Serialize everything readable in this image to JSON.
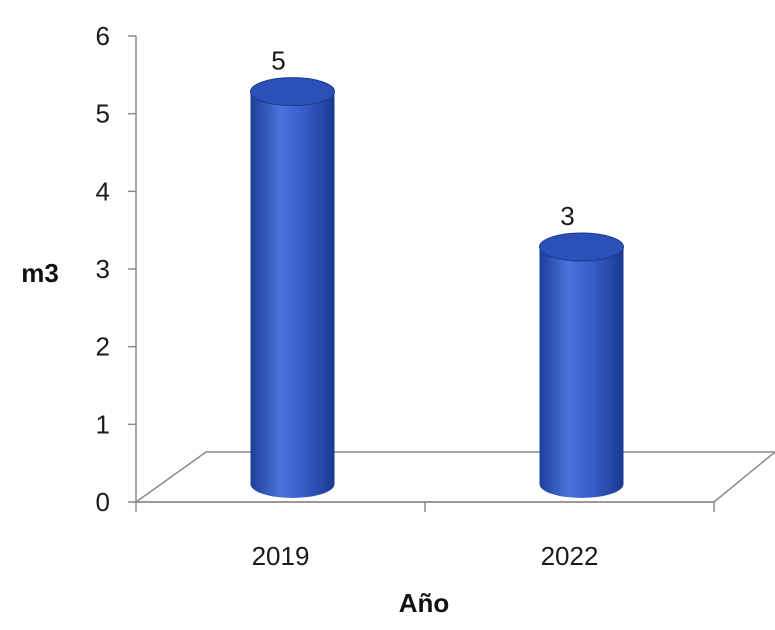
{
  "chart_data": {
    "type": "bar",
    "categories": [
      "2019",
      "2022"
    ],
    "values": [
      5,
      3
    ],
    "data_labels": [
      "5",
      "3"
    ],
    "title": "",
    "xlabel": "Año",
    "ylabel": "m3",
    "ylim": [
      0,
      6
    ],
    "yticks": [
      "0",
      "1",
      "2",
      "3",
      "4",
      "5",
      "6"
    ],
    "grid": false,
    "legend": "none",
    "style": "3d-cylinder",
    "bar_color": "#3a5fcd",
    "bar_color_dark": "#1a3a8f",
    "bar_color_light": "#6f95ec"
  }
}
